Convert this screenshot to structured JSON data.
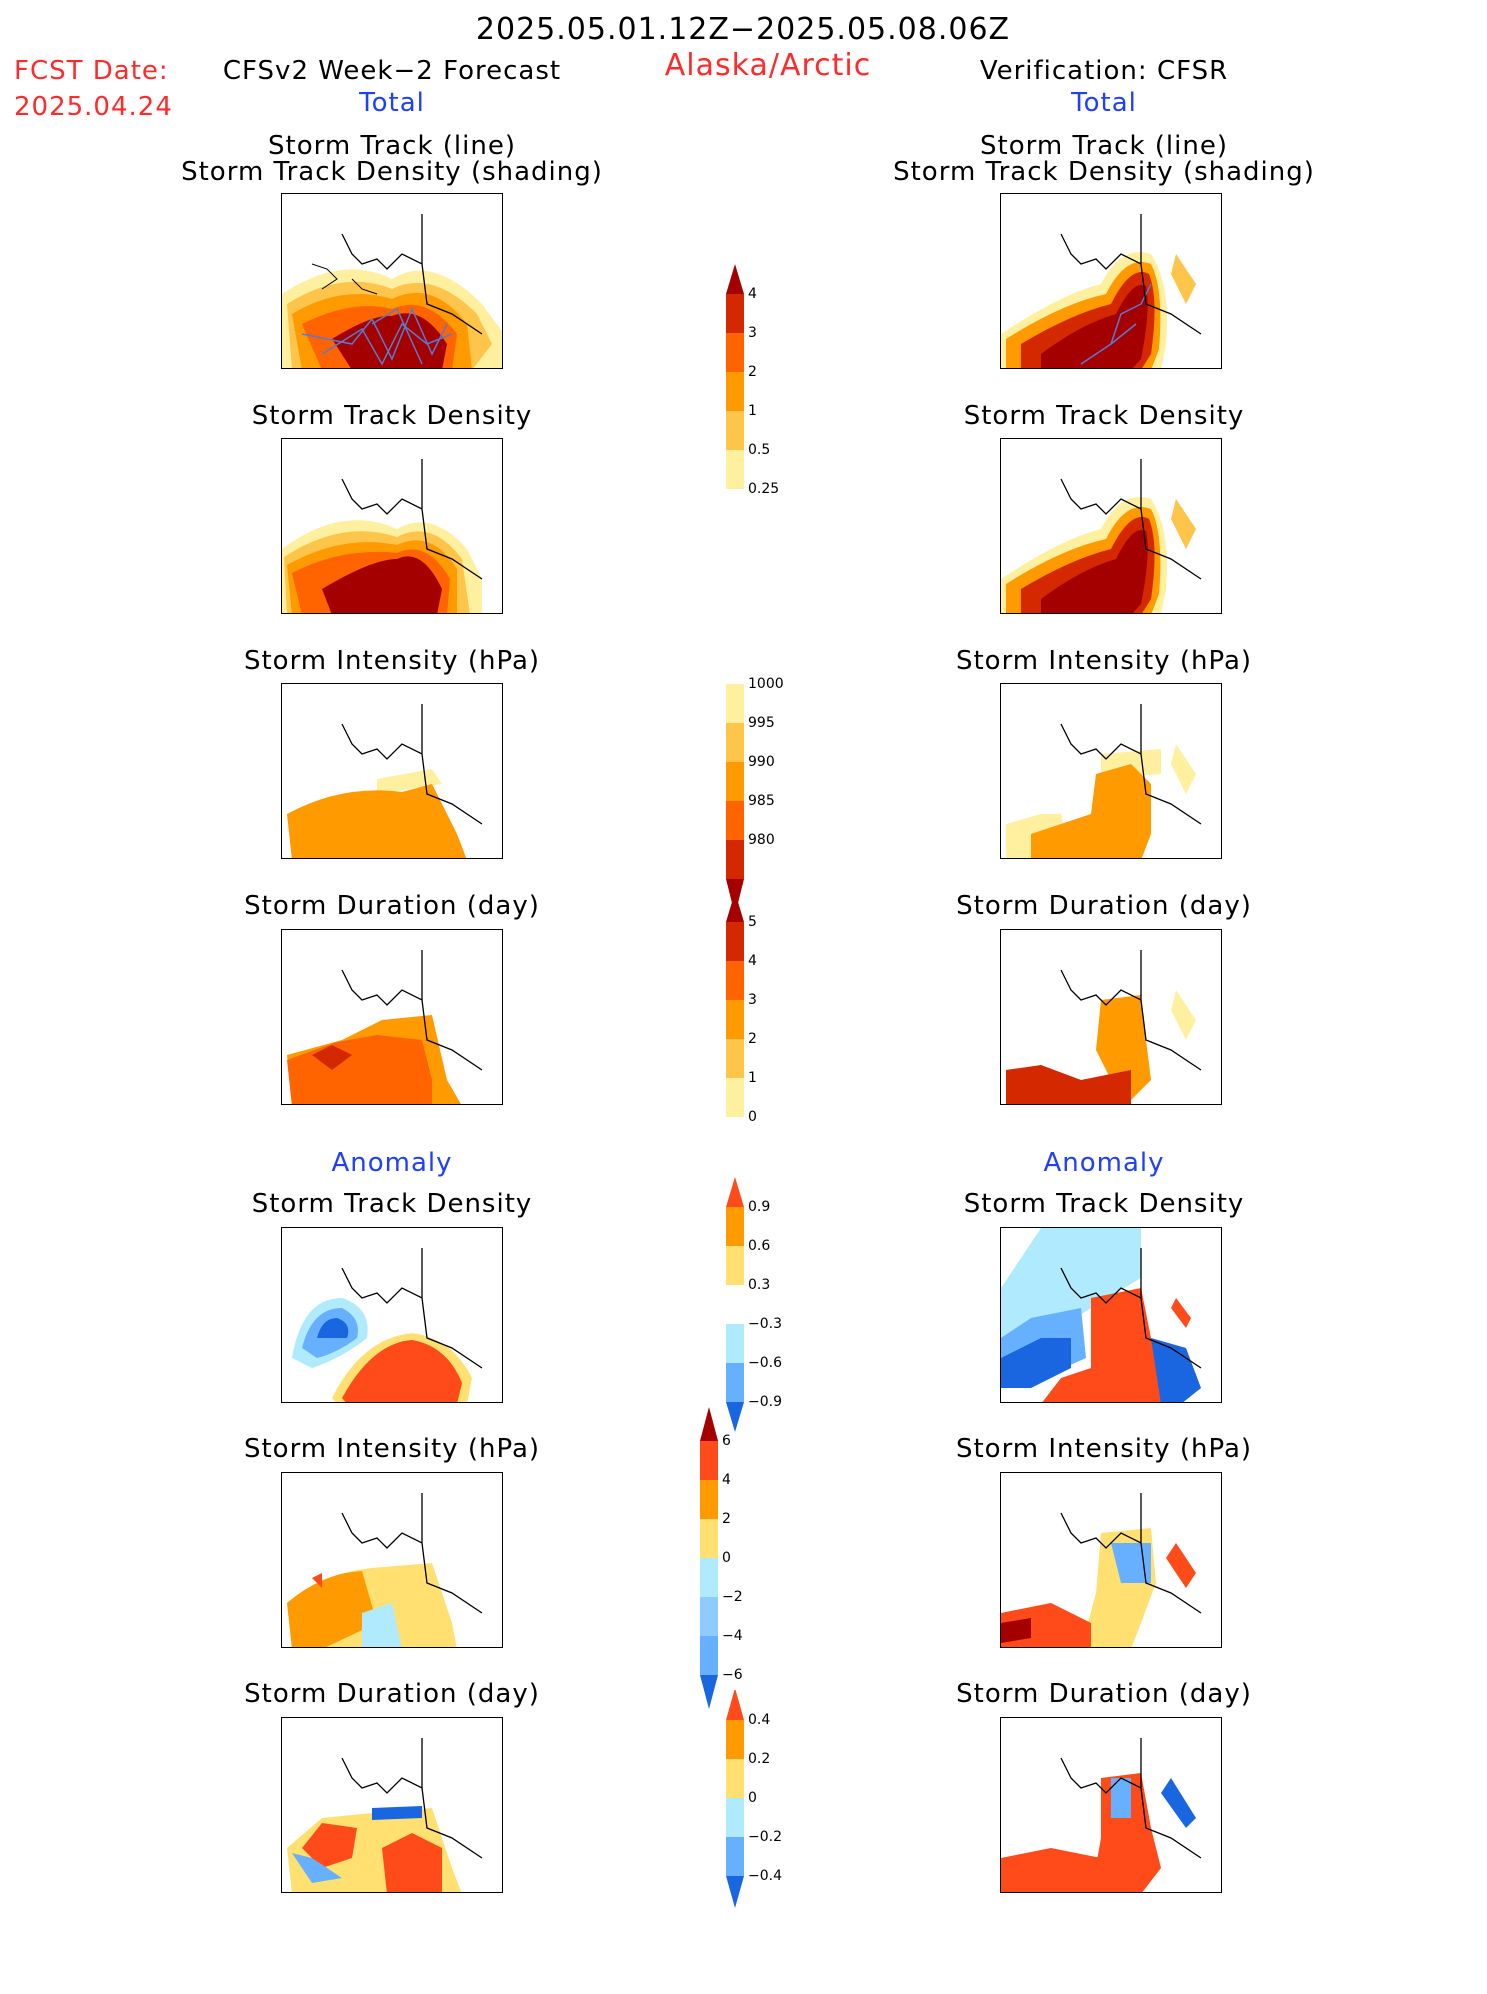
{
  "header": {
    "period": "2025.05.01.12Z−2025.05.08.06Z",
    "region": "Alaska/Arctic",
    "fcst_label": "FCST Date:",
    "fcst_date": "2025.04.24",
    "left_model": "CFSv2 Week−2 Forecast",
    "right_model": "Verification: CFSR",
    "left_total": "Total",
    "right_total": "Total",
    "left_anomaly": "Anomaly",
    "right_anomaly": "Anomaly"
  },
  "panels": {
    "track_line_1": "Storm Track (line)",
    "track_line_2": "Storm Track Density (shading)",
    "density": "Storm Track Density",
    "intensity": "Storm Intensity (hPa)",
    "duration": "Storm Duration (day)"
  },
  "colorbars": {
    "density_total": {
      "labels": [
        "4",
        "3",
        "2",
        "1",
        "0.5",
        "0.25"
      ],
      "colors": [
        "#a50000",
        "#d42800",
        "#ff6400",
        "#ff9a00",
        "#ffc44a",
        "#fff0a0"
      ]
    },
    "intensity_total": {
      "labels": [
        "1000",
        "995",
        "990",
        "985",
        "980"
      ],
      "colors": [
        "#fff0a0",
        "#ffc44a",
        "#ff9a00",
        "#ff6400",
        "#d42800",
        "#a50000"
      ]
    },
    "duration_total": {
      "labels": [
        "5",
        "4",
        "3",
        "2",
        "1",
        "0"
      ],
      "colors": [
        "#a50000",
        "#d42800",
        "#ff6400",
        "#ff9a00",
        "#ffc44a",
        "#fff0a0"
      ]
    },
    "density_anom": {
      "labels": [
        "0.9",
        "0.6",
        "0.3",
        "−0.3",
        "−0.6",
        "−0.9"
      ],
      "colors": [
        "#ff4a1a",
        "#ff9a00",
        "#ffe070",
        "#ffffff",
        "#b0eaff",
        "#66b0ff",
        "#1a66e0"
      ]
    },
    "intensity_anom": {
      "labels": [
        "6",
        "4",
        "2",
        "0",
        "−2",
        "−4",
        "−6"
      ],
      "colors": [
        "#a50000",
        "#ff4a1a",
        "#ff9a00",
        "#ffe070",
        "#b0eaff",
        "#8ecbff",
        "#66b0ff",
        "#1a66e0"
      ]
    },
    "duration_anom": {
      "labels": [
        "0.4",
        "0.2",
        "0",
        "−0.2",
        "−0.4"
      ],
      "colors": [
        "#ff4a1a",
        "#ff9a00",
        "#ffe070",
        "#b0eaff",
        "#66b0ff",
        "#1a66e0"
      ]
    }
  }
}
